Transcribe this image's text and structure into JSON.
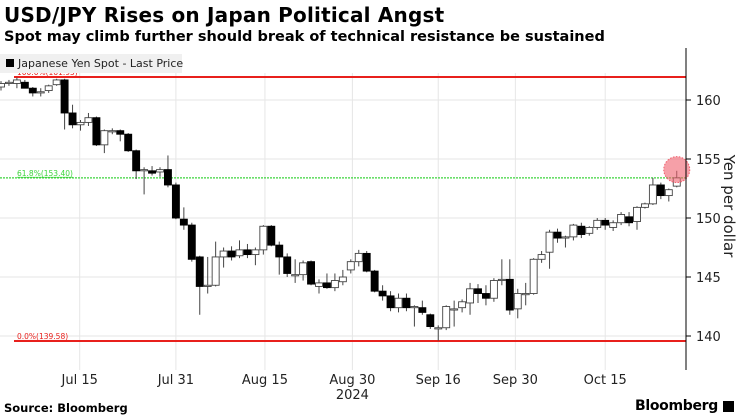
{
  "header": {
    "title": "USD/JPY Rises on Japan Political Angst",
    "subtitle": "Spot may climb further should break of technical resistance be sustained"
  },
  "footer": {
    "source": "Source: Bloomberg",
    "logo": "Bloomberg"
  },
  "chart_data": {
    "type": "candlestick",
    "title": "USD/JPY Rises on Japan Political Angst",
    "legend": {
      "label": "Japanese Yen Spot - Last Price",
      "placement": "top-left"
    },
    "ylabel": "Yen per dollar",
    "ylim": [
      137.4,
      164.6
    ],
    "yticks": [
      140,
      145,
      150,
      155,
      160
    ],
    "xticks": [
      {
        "label": "Jul 15",
        "index": 9.9
      },
      {
        "label": "Jul 31",
        "index": 22.0
      },
      {
        "label": "Aug 15",
        "index": 33.2
      },
      {
        "label": "Aug 30",
        "index": 44.2
      },
      {
        "label": "Sep 16",
        "index": 55.0
      },
      {
        "label": "Sep 30",
        "index": 64.7
      },
      {
        "label": "Oct 15",
        "index": 76.0
      }
    ],
    "year_label": {
      "label": "2024",
      "index": 44.2
    },
    "grid": true,
    "levels": [
      {
        "label": "100.0%(161.95)",
        "value": 161.95,
        "color": "#e8201c",
        "style": "solid"
      },
      {
        "label": "61.8%(153.40)",
        "value": 153.4,
        "color": "#3bd43b",
        "style": "dotted"
      },
      {
        "label": "0.0%(139.58)",
        "value": 139.58,
        "color": "#e8201c",
        "style": "solid"
      }
    ],
    "highlight": {
      "index": 85,
      "value": 154.1,
      "color": "#f0606e"
    },
    "ohlc_columns": [
      "open",
      "high",
      "low",
      "close"
    ],
    "candles": [
      [
        161.1,
        161.6,
        160.8,
        161.4
      ],
      [
        161.5,
        161.7,
        161.2,
        161.5
      ],
      [
        161.4,
        161.9,
        161.0,
        161.7
      ],
      [
        161.5,
        161.7,
        161.0,
        161.0
      ],
      [
        161.0,
        161.1,
        160.3,
        160.6
      ],
      [
        160.7,
        161.0,
        160.3,
        160.7
      ],
      [
        160.8,
        161.3,
        160.6,
        161.2
      ],
      [
        161.3,
        161.8,
        161.2,
        161.7
      ],
      [
        161.7,
        161.8,
        157.5,
        158.9
      ],
      [
        158.9,
        159.6,
        157.6,
        157.9
      ],
      [
        157.9,
        158.3,
        157.4,
        158.1
      ],
      [
        158.1,
        158.9,
        157.8,
        158.5
      ],
      [
        158.5,
        158.6,
        156.1,
        156.2
      ],
      [
        156.2,
        157.5,
        155.5,
        157.4
      ],
      [
        157.4,
        157.6,
        157.1,
        157.4
      ],
      [
        157.4,
        157.5,
        156.5,
        157.1
      ],
      [
        157.1,
        157.2,
        155.6,
        155.7
      ],
      [
        155.7,
        155.8,
        153.3,
        154.0
      ],
      [
        154.1,
        154.3,
        152.0,
        154.1
      ],
      [
        154.0,
        154.4,
        153.6,
        153.8
      ],
      [
        153.9,
        154.3,
        153.5,
        154.1
      ],
      [
        154.1,
        155.3,
        152.6,
        152.8
      ],
      [
        152.8,
        153.0,
        149.9,
        150.0
      ],
      [
        149.9,
        150.9,
        149.0,
        149.4
      ],
      [
        149.4,
        149.6,
        146.3,
        146.5
      ],
      [
        146.7,
        146.8,
        141.8,
        144.2
      ],
      [
        144.3,
        146.7,
        143.6,
        144.3
      ],
      [
        144.3,
        148.0,
        144.2,
        146.7
      ],
      [
        146.7,
        147.5,
        145.8,
        147.2
      ],
      [
        147.2,
        147.6,
        146.4,
        146.7
      ],
      [
        146.8,
        148.1,
        146.6,
        147.3
      ],
      [
        147.3,
        147.8,
        146.6,
        146.9
      ],
      [
        146.9,
        147.5,
        146.0,
        147.3
      ],
      [
        147.3,
        149.4,
        146.9,
        149.3
      ],
      [
        149.3,
        149.4,
        147.6,
        147.7
      ],
      [
        147.7,
        148.0,
        145.2,
        146.7
      ],
      [
        146.7,
        147.0,
        145.0,
        145.3
      ],
      [
        145.2,
        146.5,
        144.5,
        145.2
      ],
      [
        145.2,
        146.4,
        144.7,
        146.2
      ],
      [
        146.3,
        146.4,
        144.3,
        144.4
      ],
      [
        144.2,
        144.8,
        143.6,
        144.5
      ],
      [
        144.5,
        145.3,
        144.0,
        144.1
      ],
      [
        144.1,
        145.3,
        143.8,
        144.7
      ],
      [
        144.6,
        145.6,
        144.3,
        145.0
      ],
      [
        145.6,
        146.5,
        145.3,
        146.3
      ],
      [
        146.3,
        147.3,
        145.9,
        147.0
      ],
      [
        147.0,
        147.2,
        145.4,
        145.5
      ],
      [
        145.5,
        145.6,
        143.7,
        143.8
      ],
      [
        143.8,
        144.3,
        143.0,
        143.4
      ],
      [
        143.4,
        143.8,
        142.1,
        142.4
      ],
      [
        142.4,
        143.6,
        142.0,
        143.2
      ],
      [
        143.2,
        143.6,
        142.1,
        142.4
      ],
      [
        142.5,
        142.6,
        140.8,
        142.5
      ],
      [
        142.4,
        143.0,
        141.8,
        142.0
      ],
      [
        141.8,
        141.9,
        140.6,
        140.8
      ],
      [
        140.7,
        140.9,
        139.6,
        140.7
      ],
      [
        140.7,
        142.6,
        140.5,
        142.5
      ],
      [
        142.3,
        143.0,
        140.8,
        142.3
      ],
      [
        142.4,
        143.1,
        142.0,
        142.9
      ],
      [
        142.8,
        144.5,
        141.8,
        144.0
      ],
      [
        144.0,
        144.4,
        142.8,
        143.6
      ],
      [
        143.6,
        144.3,
        142.6,
        143.2
      ],
      [
        143.2,
        144.9,
        142.9,
        144.7
      ],
      [
        144.8,
        146.5,
        144.3,
        144.8
      ],
      [
        144.8,
        146.5,
        141.8,
        142.2
      ],
      [
        142.3,
        144.0,
        141.5,
        143.6
      ],
      [
        143.6,
        144.5,
        142.6,
        143.6
      ],
      [
        143.6,
        146.6,
        143.5,
        146.5
      ],
      [
        146.5,
        147.2,
        146.2,
        146.9
      ],
      [
        147.1,
        149.0,
        145.7,
        148.8
      ],
      [
        148.8,
        149.1,
        147.9,
        148.3
      ],
      [
        148.4,
        148.5,
        147.5,
        148.4
      ],
      [
        148.4,
        149.5,
        148.1,
        149.4
      ],
      [
        149.3,
        149.6,
        148.3,
        148.6
      ],
      [
        148.7,
        149.3,
        148.5,
        149.2
      ],
      [
        149.2,
        150.0,
        149.0,
        149.8
      ],
      [
        149.8,
        150.0,
        149.0,
        149.4
      ],
      [
        149.2,
        149.8,
        148.9,
        149.6
      ],
      [
        149.6,
        150.5,
        149.4,
        150.3
      ],
      [
        150.1,
        150.5,
        149.3,
        149.6
      ],
      [
        149.7,
        151.0,
        149.0,
        150.9
      ],
      [
        150.9,
        151.3,
        150.8,
        151.2
      ],
      [
        151.2,
        153.4,
        151.1,
        152.8
      ],
      [
        152.8,
        153.0,
        151.6,
        151.9
      ],
      [
        151.9,
        152.5,
        151.4,
        152.4
      ],
      [
        152.7,
        154.0,
        152.6,
        153.4
      ]
    ]
  }
}
